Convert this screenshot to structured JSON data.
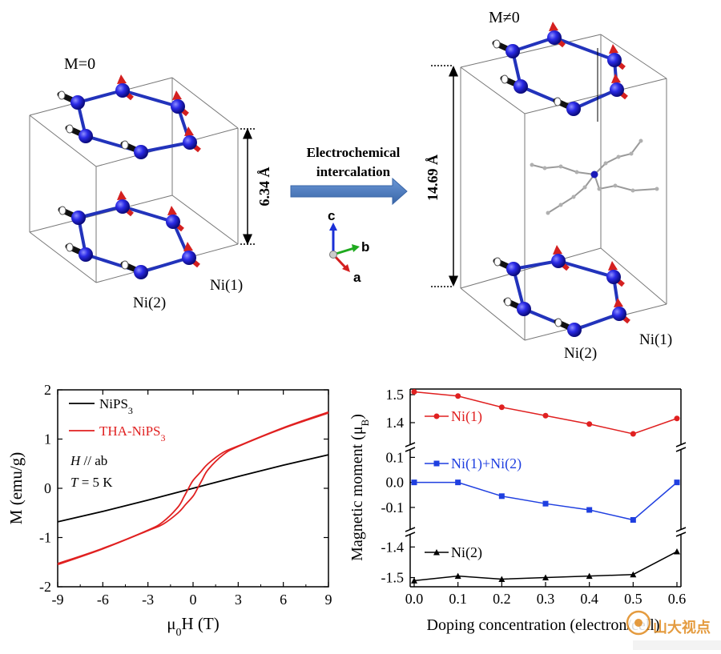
{
  "figure": {
    "left_structure": {
      "moment_label": "M=0",
      "distance_label": "6.34 Å",
      "site_labels": [
        "Ni(1)",
        "Ni(2)"
      ]
    },
    "right_structure": {
      "moment_label": "M≠0",
      "distance_label": "14.69 Å",
      "site_labels": [
        "Ni(1)",
        "Ni(2)"
      ]
    },
    "arrow_label": [
      "Electrochemical",
      "intercalation"
    ],
    "axes_triad": {
      "c": "c",
      "b": "b",
      "a": "a"
    },
    "watermark": "山大视点",
    "colors": {
      "ni_atom": "#1a1adb",
      "spin": "#d42020",
      "spin_dark": "#111111",
      "bond": "#2233bb",
      "arrow": "#4f81bd"
    }
  },
  "chart_data": [
    {
      "type": "line",
      "ylabel": "M (emu/g)",
      "xlabel_prefix": "μ",
      "xlabel_sub": "0",
      "xlabel_suffix": "H (T)",
      "xlim": [
        -9,
        9
      ],
      "ylim": [
        -2,
        2
      ],
      "xticks": [
        "-9",
        "-6",
        "-3",
        "0",
        "3",
        "6",
        "9"
      ],
      "yticks": [
        "-2",
        "-1",
        "0",
        "1",
        "2"
      ],
      "annotations": {
        "field_italic": "H",
        "field_rest": " // ab",
        "temp_italic": "T",
        "temp_rest": " = 5 K"
      },
      "series": [
        {
          "name": "NiPS",
          "name_sub": "3",
          "color": "#000000",
          "x": [
            -9,
            -6,
            -3,
            0,
            3,
            6,
            9
          ],
          "y": [
            -0.68,
            -0.47,
            -0.24,
            0.0,
            0.24,
            0.47,
            0.68
          ]
        },
        {
          "name": "THA-NiPS",
          "name_sub": "3",
          "color": "#e02020",
          "branches": [
            {
              "x": [
                -9,
                -6,
                -3,
                -2,
                -1,
                -0.5,
                0,
                0.3,
                0.6,
                1,
                2,
                3,
                6,
                9
              ],
              "y": [
                -1.55,
                -1.23,
                -0.86,
                -0.73,
                -0.5,
                -0.33,
                -0.16,
                0.0,
                0.17,
                0.38,
                0.68,
                0.85,
                1.22,
                1.53
              ]
            },
            {
              "x": [
                -9,
                -6,
                -3,
                -2,
                -1,
                -0.6,
                -0.3,
                0,
                0.5,
                1,
                2,
                3,
                6,
                9
              ],
              "y": [
                -1.53,
                -1.22,
                -0.85,
                -0.68,
                -0.38,
                -0.17,
                0.0,
                0.16,
                0.33,
                0.5,
                0.73,
                0.86,
                1.23,
                1.55
              ]
            }
          ]
        }
      ]
    },
    {
      "type": "line",
      "ylabel_prefix": "Magnetic moment (μ",
      "ylabel_sub": "B",
      "ylabel_suffix": ")",
      "xlabel": "Doping concentration (electron/cell)",
      "xlim": [
        0,
        0.6
      ],
      "xticks": [
        "0.0",
        "0.1",
        "0.2",
        "0.3",
        "0.4",
        "0.5",
        "0.6"
      ],
      "y_broken": true,
      "segments": [
        {
          "ylim": [
            1.32,
            1.52
          ],
          "yticks": [
            "1.5",
            "1.4"
          ],
          "ytick_values": [
            1.5,
            1.4
          ]
        },
        {
          "ylim": [
            -0.19,
            0.13
          ],
          "yticks": [
            "0.1",
            "0.0",
            "-0.1"
          ],
          "ytick_values": [
            0.1,
            0.0,
            -0.1
          ]
        },
        {
          "ylim": [
            -1.53,
            -1.36
          ],
          "yticks": [
            "-1.4",
            "-1.5"
          ],
          "ytick_values": [
            -1.4,
            -1.5
          ]
        }
      ],
      "series": [
        {
          "name": "Ni(1)",
          "color": "#e02020",
          "marker": "circle",
          "segment": 0,
          "x": [
            0.0,
            0.1,
            0.2,
            0.3,
            0.4,
            0.5,
            0.6
          ],
          "y": [
            1.51,
            1.495,
            1.455,
            1.425,
            1.395,
            1.36,
            1.415
          ]
        },
        {
          "name": "Ni(1)+Ni(2)",
          "color": "#1f3fe0",
          "marker": "square",
          "segment": 1,
          "x": [
            0.0,
            0.1,
            0.2,
            0.3,
            0.4,
            0.5,
            0.6
          ],
          "y": [
            0.0,
            0.0,
            -0.055,
            -0.085,
            -0.11,
            -0.15,
            0.0
          ]
        },
        {
          "name": "Ni(2)",
          "color": "#000000",
          "marker": "triangle",
          "segment": 2,
          "x": [
            0.0,
            0.1,
            0.2,
            0.3,
            0.4,
            0.5,
            0.6
          ],
          "y": [
            -1.51,
            -1.495,
            -1.505,
            -1.5,
            -1.495,
            -1.49,
            -1.415
          ]
        }
      ]
    }
  ]
}
